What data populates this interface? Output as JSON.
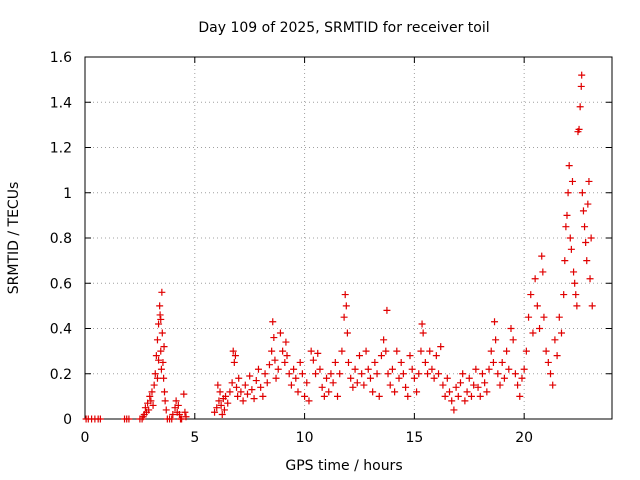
{
  "chart_data": {
    "type": "scatter",
    "title": "Day 109 of 2025, SRMTID for receiver toil",
    "xlabel": "GPS time / hours",
    "ylabel": "SRMTID / TECUs",
    "xlim": [
      0,
      24
    ],
    "ylim": [
      0,
      1.6
    ],
    "xticks": [
      0,
      5,
      10,
      15,
      20
    ],
    "xtick_labels": [
      "0",
      "5",
      "10",
      "15",
      "20"
    ],
    "yticks": [
      0,
      0.2,
      0.4,
      0.6,
      0.8,
      1.0,
      1.2,
      1.4,
      1.6
    ],
    "ytick_labels": [
      "0",
      "0.2",
      "0.4",
      "0.6",
      "0.8",
      "1",
      "1.2",
      "1.4",
      "1.6"
    ],
    "grid": true,
    "marker": "+",
    "color": "#e00000",
    "series": [
      {
        "name": "SRMTID",
        "points": [
          [
            0.05,
            0
          ],
          [
            0.15,
            0
          ],
          [
            0.3,
            0
          ],
          [
            0.45,
            0
          ],
          [
            0.6,
            0
          ],
          [
            0.7,
            0
          ],
          [
            1.8,
            0
          ],
          [
            1.9,
            0
          ],
          [
            2.0,
            0
          ],
          [
            2.5,
            0
          ],
          [
            2.6,
            0
          ],
          [
            2.65,
            0.01
          ],
          [
            2.7,
            0.02
          ],
          [
            2.75,
            0.05
          ],
          [
            2.8,
            0.03
          ],
          [
            2.85,
            0.07
          ],
          [
            2.9,
            0.04
          ],
          [
            2.95,
            0.1
          ],
          [
            3.0,
            0.08
          ],
          [
            3.05,
            0.12
          ],
          [
            3.1,
            0.06
          ],
          [
            3.15,
            0.15
          ],
          [
            3.2,
            0.2
          ],
          [
            3.25,
            0.28
          ],
          [
            3.3,
            0.35
          ],
          [
            3.35,
            0.42
          ],
          [
            3.4,
            0.5
          ],
          [
            3.42,
            0.46
          ],
          [
            3.45,
            0.3
          ],
          [
            3.48,
            0.22
          ],
          [
            3.5,
            0.56
          ],
          [
            3.52,
            0.38
          ],
          [
            3.55,
            0.25
          ],
          [
            3.58,
            0.18
          ],
          [
            3.6,
            0.32
          ],
          [
            3.62,
            0.12
          ],
          [
            3.65,
            0.08
          ],
          [
            3.7,
            0.04
          ],
          [
            3.3,
            0.18
          ],
          [
            3.35,
            0.26
          ],
          [
            3.45,
            0.44
          ],
          [
            3.75,
            0
          ],
          [
            3.85,
            0
          ],
          [
            3.95,
            0
          ],
          [
            4.0,
            0.02
          ],
          [
            4.1,
            0.05
          ],
          [
            4.15,
            0.08
          ],
          [
            4.2,
            0.03
          ],
          [
            4.25,
            0.06
          ],
          [
            4.3,
            0.02
          ],
          [
            4.35,
            0
          ],
          [
            4.4,
            0
          ],
          [
            4.5,
            0.11
          ],
          [
            4.55,
            0.03
          ],
          [
            4.6,
            0.01
          ],
          [
            5.9,
            0.03
          ],
          [
            6.0,
            0.05
          ],
          [
            6.05,
            0.15
          ],
          [
            6.1,
            0.08
          ],
          [
            6.15,
            0.12
          ],
          [
            6.2,
            0.06
          ],
          [
            6.25,
            0.02
          ],
          [
            6.3,
            0.09
          ],
          [
            6.35,
            0.04
          ],
          [
            6.4,
            0.1
          ],
          [
            6.5,
            0.07
          ],
          [
            6.6,
            0.12
          ],
          [
            6.7,
            0.16
          ],
          [
            6.75,
            0.3
          ],
          [
            6.8,
            0.25
          ],
          [
            6.85,
            0.28
          ],
          [
            6.9,
            0.14
          ],
          [
            6.95,
            0.1
          ],
          [
            7.0,
            0.18
          ],
          [
            7.1,
            0.12
          ],
          [
            7.2,
            0.08
          ],
          [
            7.3,
            0.15
          ],
          [
            7.4,
            0.11
          ],
          [
            7.5,
            0.19
          ],
          [
            7.6,
            0.13
          ],
          [
            7.7,
            0.09
          ],
          [
            7.8,
            0.17
          ],
          [
            7.9,
            0.22
          ],
          [
            8.0,
            0.14
          ],
          [
            8.1,
            0.1
          ],
          [
            8.2,
            0.2
          ],
          [
            8.3,
            0.16
          ],
          [
            8.4,
            0.24
          ],
          [
            8.5,
            0.3
          ],
          [
            8.55,
            0.43
          ],
          [
            8.6,
            0.36
          ],
          [
            8.65,
            0.26
          ],
          [
            8.7,
            0.18
          ],
          [
            8.8,
            0.22
          ],
          [
            8.9,
            0.38
          ],
          [
            9.0,
            0.3
          ],
          [
            9.1,
            0.25
          ],
          [
            9.15,
            0.34
          ],
          [
            9.2,
            0.28
          ],
          [
            9.3,
            0.2
          ],
          [
            9.4,
            0.15
          ],
          [
            9.5,
            0.22
          ],
          [
            9.6,
            0.18
          ],
          [
            9.7,
            0.12
          ],
          [
            9.8,
            0.25
          ],
          [
            9.9,
            0.2
          ],
          [
            10.0,
            0.1
          ],
          [
            10.1,
            0.16
          ],
          [
            10.2,
            0.08
          ],
          [
            10.3,
            0.3
          ],
          [
            10.4,
            0.26
          ],
          [
            10.5,
            0.2
          ],
          [
            10.6,
            0.29
          ],
          [
            10.7,
            0.22
          ],
          [
            10.8,
            0.14
          ],
          [
            10.9,
            0.1
          ],
          [
            11.0,
            0.18
          ],
          [
            11.1,
            0.12
          ],
          [
            11.2,
            0.2
          ],
          [
            11.3,
            0.16
          ],
          [
            11.4,
            0.25
          ],
          [
            11.5,
            0.1
          ],
          [
            11.6,
            0.2
          ],
          [
            11.7,
            0.3
          ],
          [
            11.8,
            0.45
          ],
          [
            11.85,
            0.55
          ],
          [
            11.9,
            0.5
          ],
          [
            11.95,
            0.38
          ],
          [
            12.0,
            0.25
          ],
          [
            12.1,
            0.18
          ],
          [
            12.2,
            0.14
          ],
          [
            12.3,
            0.22
          ],
          [
            12.4,
            0.16
          ],
          [
            12.5,
            0.28
          ],
          [
            12.6,
            0.2
          ],
          [
            12.7,
            0.15
          ],
          [
            12.8,
            0.3
          ],
          [
            12.9,
            0.22
          ],
          [
            13.0,
            0.18
          ],
          [
            13.1,
            0.12
          ],
          [
            13.2,
            0.25
          ],
          [
            13.3,
            0.2
          ],
          [
            13.4,
            0.1
          ],
          [
            13.5,
            0.28
          ],
          [
            13.6,
            0.35
          ],
          [
            13.7,
            0.3
          ],
          [
            13.75,
            0.48
          ],
          [
            13.8,
            0.2
          ],
          [
            13.9,
            0.15
          ],
          [
            14.0,
            0.22
          ],
          [
            14.1,
            0.12
          ],
          [
            14.2,
            0.3
          ],
          [
            14.3,
            0.18
          ],
          [
            14.4,
            0.25
          ],
          [
            14.5,
            0.2
          ],
          [
            14.6,
            0.14
          ],
          [
            14.7,
            0.1
          ],
          [
            14.8,
            0.28
          ],
          [
            14.9,
            0.22
          ],
          [
            15.0,
            0.18
          ],
          [
            15.1,
            0.12
          ],
          [
            15.2,
            0.2
          ],
          [
            15.3,
            0.3
          ],
          [
            15.35,
            0.42
          ],
          [
            15.4,
            0.38
          ],
          [
            15.5,
            0.25
          ],
          [
            15.6,
            0.2
          ],
          [
            15.7,
            0.3
          ],
          [
            15.8,
            0.22
          ],
          [
            15.9,
            0.18
          ],
          [
            16.0,
            0.28
          ],
          [
            16.1,
            0.2
          ],
          [
            16.2,
            0.32
          ],
          [
            16.3,
            0.15
          ],
          [
            16.4,
            0.1
          ],
          [
            16.5,
            0.18
          ],
          [
            16.6,
            0.12
          ],
          [
            16.7,
            0.08
          ],
          [
            16.8,
            0.04
          ],
          [
            16.9,
            0.14
          ],
          [
            17.0,
            0.1
          ],
          [
            17.1,
            0.16
          ],
          [
            17.2,
            0.2
          ],
          [
            17.3,
            0.08
          ],
          [
            17.4,
            0.12
          ],
          [
            17.5,
            0.18
          ],
          [
            17.6,
            0.1
          ],
          [
            17.7,
            0.15
          ],
          [
            17.8,
            0.22
          ],
          [
            17.9,
            0.14
          ],
          [
            18.0,
            0.1
          ],
          [
            18.1,
            0.2
          ],
          [
            18.2,
            0.16
          ],
          [
            18.3,
            0.12
          ],
          [
            18.4,
            0.22
          ],
          [
            18.5,
            0.3
          ],
          [
            18.6,
            0.25
          ],
          [
            18.65,
            0.43
          ],
          [
            18.7,
            0.35
          ],
          [
            18.8,
            0.2
          ],
          [
            18.9,
            0.15
          ],
          [
            19.0,
            0.25
          ],
          [
            19.1,
            0.18
          ],
          [
            19.2,
            0.3
          ],
          [
            19.3,
            0.22
          ],
          [
            19.4,
            0.4
          ],
          [
            19.5,
            0.35
          ],
          [
            19.6,
            0.2
          ],
          [
            19.7,
            0.15
          ],
          [
            19.8,
            0.1
          ],
          [
            19.9,
            0.18
          ],
          [
            20.0,
            0.22
          ],
          [
            20.1,
            0.3
          ],
          [
            20.2,
            0.45
          ],
          [
            20.3,
            0.55
          ],
          [
            20.4,
            0.38
          ],
          [
            20.5,
            0.62
          ],
          [
            20.6,
            0.5
          ],
          [
            20.7,
            0.4
          ],
          [
            20.8,
            0.72
          ],
          [
            20.85,
            0.65
          ],
          [
            20.9,
            0.45
          ],
          [
            21.0,
            0.3
          ],
          [
            21.1,
            0.25
          ],
          [
            21.2,
            0.2
          ],
          [
            21.3,
            0.15
          ],
          [
            21.4,
            0.35
          ],
          [
            21.5,
            0.28
          ],
          [
            21.6,
            0.45
          ],
          [
            21.7,
            0.38
          ],
          [
            21.8,
            0.55
          ],
          [
            21.85,
            0.7
          ],
          [
            21.9,
            0.85
          ],
          [
            21.95,
            0.9
          ],
          [
            22.0,
            1.0
          ],
          [
            22.05,
            1.12
          ],
          [
            22.1,
            0.8
          ],
          [
            22.15,
            0.75
          ],
          [
            22.2,
            1.05
          ],
          [
            22.25,
            0.65
          ],
          [
            22.3,
            0.6
          ],
          [
            22.35,
            0.55
          ],
          [
            22.4,
            0.5
          ],
          [
            22.45,
            1.27
          ],
          [
            22.5,
            1.28
          ],
          [
            22.55,
            1.38
          ],
          [
            22.6,
            1.47
          ],
          [
            22.62,
            1.52
          ],
          [
            22.65,
            1.0
          ],
          [
            22.7,
            0.92
          ],
          [
            22.75,
            0.85
          ],
          [
            22.8,
            0.78
          ],
          [
            22.85,
            0.7
          ],
          [
            22.9,
            0.95
          ],
          [
            22.95,
            1.05
          ],
          [
            23.0,
            0.62
          ],
          [
            23.05,
            0.8
          ],
          [
            23.1,
            0.5
          ]
        ]
      }
    ]
  }
}
